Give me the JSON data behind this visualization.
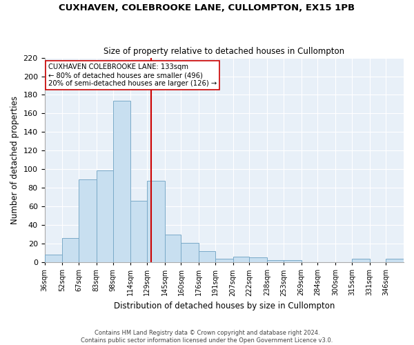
{
  "title": "CUXHAVEN, COLEBROOKE LANE, CULLOMPTON, EX15 1PB",
  "subtitle": "Size of property relative to detached houses in Cullompton",
  "xlabel": "Distribution of detached houses by size in Cullompton",
  "ylabel": "Number of detached properties",
  "bar_color": "#c8dff0",
  "bar_edge_color": "#7aaac8",
  "background_color": "#ffffff",
  "plot_bg_color": "#e8f0f8",
  "grid_color": "#ffffff",
  "bin_edges": [
    36,
    52,
    67,
    83,
    98,
    114,
    129,
    145,
    160,
    176,
    191,
    207,
    222,
    238,
    253,
    269,
    284,
    300,
    315,
    331,
    346,
    362
  ],
  "bar_heights": [
    8,
    26,
    89,
    99,
    174,
    66,
    88,
    30,
    21,
    12,
    4,
    6,
    5,
    2,
    2,
    0,
    0,
    0,
    4,
    0,
    4
  ],
  "bin_labels": [
    "36sqm",
    "52sqm",
    "67sqm",
    "83sqm",
    "98sqm",
    "114sqm",
    "129sqm",
    "145sqm",
    "160sqm",
    "176sqm",
    "191sqm",
    "207sqm",
    "222sqm",
    "238sqm",
    "253sqm",
    "269sqm",
    "284sqm",
    "300sqm",
    "315sqm",
    "331sqm",
    "346sqm"
  ],
  "vline_x": 133,
  "vline_color": "#cc0000",
  "annotation_text": "CUXHAVEN COLEBROOKE LANE: 133sqm\n← 80% of detached houses are smaller (496)\n20% of semi-detached houses are larger (126) →",
  "annotation_box_color": "#ffffff",
  "annotation_box_edge": "#cc0000",
  "ylim": [
    0,
    220
  ],
  "yticks": [
    0,
    20,
    40,
    60,
    80,
    100,
    120,
    140,
    160,
    180,
    200,
    220
  ],
  "footer1": "Contains HM Land Registry data © Crown copyright and database right 2024.",
  "footer2": "Contains public sector information licensed under the Open Government Licence v3.0."
}
